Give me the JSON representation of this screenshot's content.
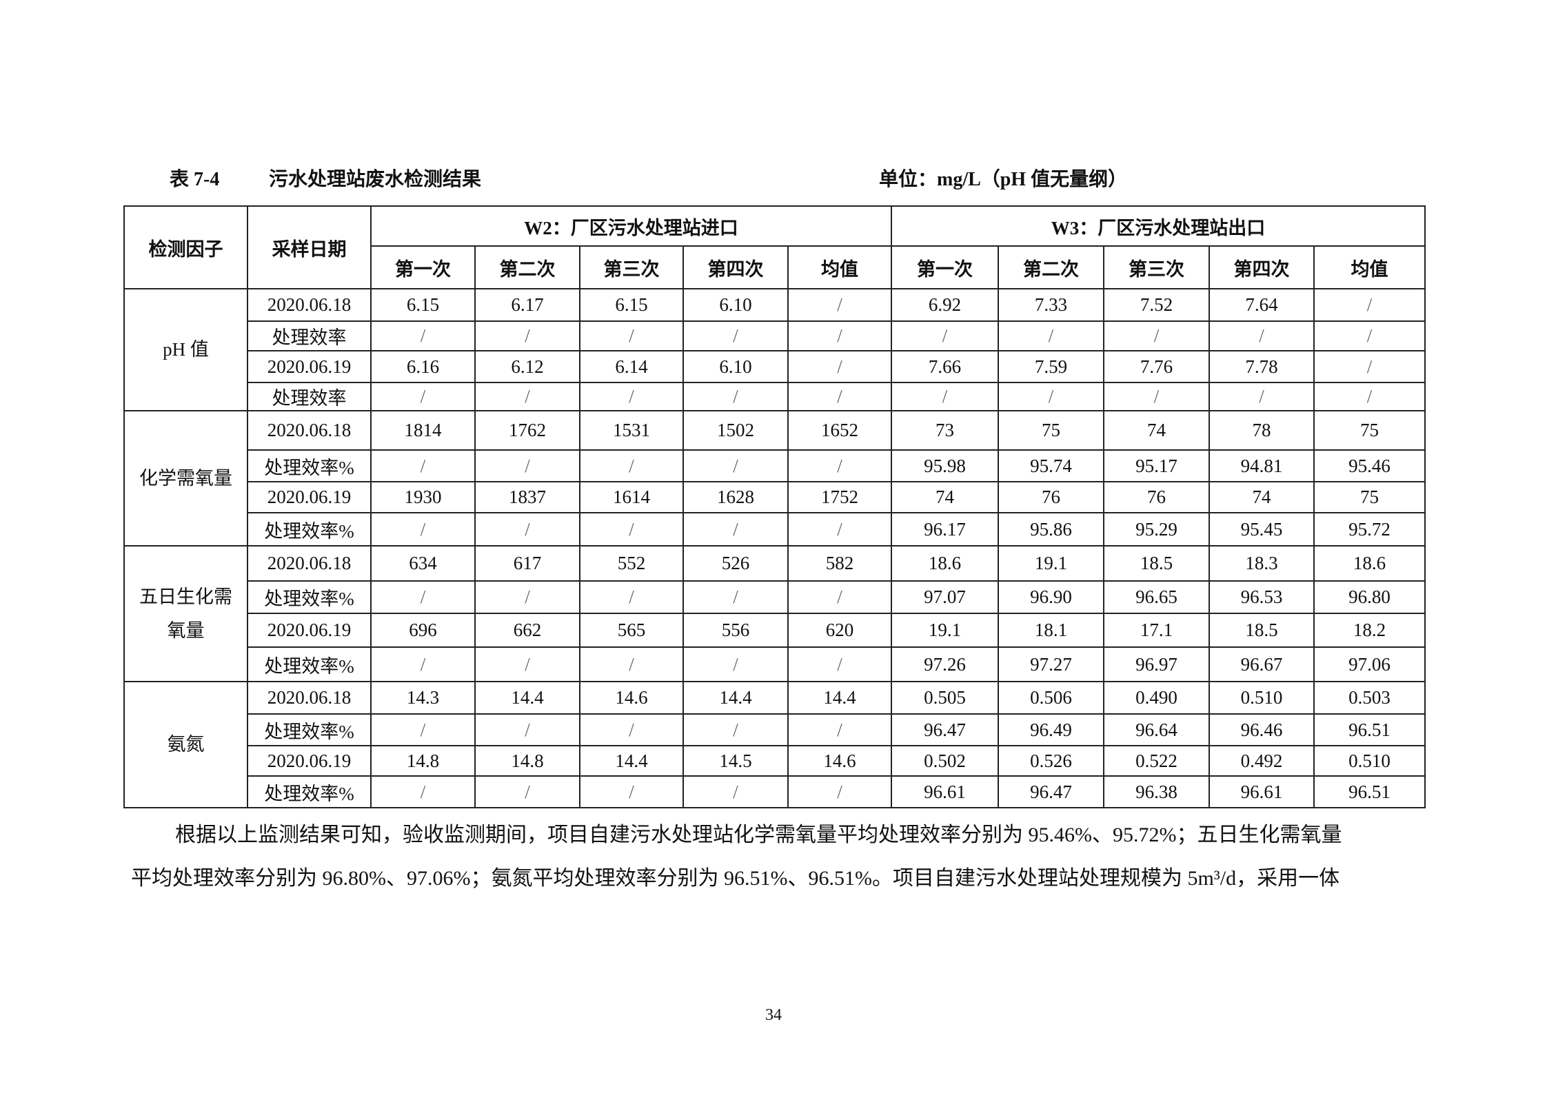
{
  "caption": {
    "number": "表 7-4",
    "title": "污水处理站废水检测结果",
    "unit": "单位：mg/L（pH 值无量纲）"
  },
  "header": {
    "factor": "检测因子",
    "date": "采样日期",
    "group1": "W2：厂区污水处理站进口",
    "group2": "W3：厂区污水处理站出口",
    "subcols": [
      "第一次",
      "第二次",
      "第三次",
      "第四次",
      "均值",
      "第一次",
      "第二次",
      "第三次",
      "第四次",
      "均值"
    ]
  },
  "groups": [
    {
      "factor": "pH 值",
      "rows": [
        {
          "label": "2020.06.18",
          "values": [
            "6.15",
            "6.17",
            "6.15",
            "6.10",
            "/",
            "6.92",
            "7.33",
            "7.52",
            "7.64",
            "/"
          ]
        },
        {
          "label": "处理效率",
          "values": [
            "/",
            "/",
            "/",
            "/",
            "/",
            "/",
            "/",
            "/",
            "/",
            "/"
          ]
        },
        {
          "label": "2020.06.19",
          "values": [
            "6.16",
            "6.12",
            "6.14",
            "6.10",
            "/",
            "7.66",
            "7.59",
            "7.76",
            "7.78",
            "/"
          ]
        },
        {
          "label": "处理效率",
          "values": [
            "/",
            "/",
            "/",
            "/",
            "/",
            "/",
            "/",
            "/",
            "/",
            "/"
          ]
        }
      ]
    },
    {
      "factor": "化学需氧量",
      "rows": [
        {
          "label": "2020.06.18",
          "values": [
            "1814",
            "1762",
            "1531",
            "1502",
            "1652",
            "73",
            "75",
            "74",
            "78",
            "75"
          ]
        },
        {
          "label": "处理效率%",
          "values": [
            "/",
            "/",
            "/",
            "/",
            "/",
            "95.98",
            "95.74",
            "95.17",
            "94.81",
            "95.46"
          ]
        },
        {
          "label": "2020.06.19",
          "values": [
            "1930",
            "1837",
            "1614",
            "1628",
            "1752",
            "74",
            "76",
            "76",
            "74",
            "75"
          ]
        },
        {
          "label": "处理效率%",
          "values": [
            "/",
            "/",
            "/",
            "/",
            "/",
            "96.17",
            "95.86",
            "95.29",
            "95.45",
            "95.72"
          ]
        }
      ]
    },
    {
      "factor": "五日生化需氧量",
      "rows": [
        {
          "label": "2020.06.18",
          "values": [
            "634",
            "617",
            "552",
            "526",
            "582",
            "18.6",
            "19.1",
            "18.5",
            "18.3",
            "18.6"
          ]
        },
        {
          "label": "处理效率%",
          "values": [
            "/",
            "/",
            "/",
            "/",
            "/",
            "97.07",
            "96.90",
            "96.65",
            "96.53",
            "96.80"
          ]
        },
        {
          "label": "2020.06.19",
          "values": [
            "696",
            "662",
            "565",
            "556",
            "620",
            "19.1",
            "18.1",
            "17.1",
            "18.5",
            "18.2"
          ]
        },
        {
          "label": "处理效率%",
          "values": [
            "/",
            "/",
            "/",
            "/",
            "/",
            "97.26",
            "97.27",
            "96.97",
            "96.67",
            "97.06"
          ]
        }
      ]
    },
    {
      "factor": "氨氮",
      "rows": [
        {
          "label": "2020.06.18",
          "values": [
            "14.3",
            "14.4",
            "14.6",
            "14.4",
            "14.4",
            "0.505",
            "0.506",
            "0.490",
            "0.510",
            "0.503"
          ]
        },
        {
          "label": "处理效率%",
          "values": [
            "/",
            "/",
            "/",
            "/",
            "/",
            "96.47",
            "96.49",
            "96.64",
            "96.46",
            "96.51"
          ]
        },
        {
          "label": "2020.06.19",
          "values": [
            "14.8",
            "14.8",
            "14.4",
            "14.5",
            "14.6",
            "0.502",
            "0.526",
            "0.522",
            "0.492",
            "0.510"
          ]
        },
        {
          "label": "处理效率%",
          "values": [
            "/",
            "/",
            "/",
            "/",
            "/",
            "96.61",
            "96.47",
            "96.38",
            "96.61",
            "96.51"
          ]
        }
      ]
    }
  ],
  "paragraph": {
    "line1": "根据以上监测结果可知，验收监测期间，项目自建污水处理站化学需氧量平均处理效率分别为 95.46%、95.72%；五日生化需氧量",
    "line2": "平均处理效率分别为 96.80%、97.06%；氨氮平均处理效率分别为 96.51%、96.51%。项目自建污水处理站处理规模为 5m³/d，采用一体"
  },
  "page_number": "34"
}
